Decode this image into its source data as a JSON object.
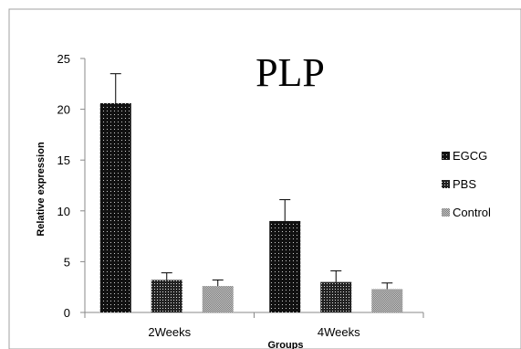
{
  "chart_data": {
    "type": "bar",
    "title": "PLP",
    "xlabel": "Groups",
    "ylabel": "Relative expression",
    "categories": [
      "2Weeks",
      "4Weeks"
    ],
    "ylim": [
      0,
      25
    ],
    "yticks": [
      0,
      5,
      10,
      15,
      20,
      25
    ],
    "series": [
      {
        "name": "EGCG",
        "values": [
          20.6,
          9.0
        ],
        "errors": [
          2.9,
          2.1
        ]
      },
      {
        "name": "PBS",
        "values": [
          3.2,
          3.0
        ],
        "errors": [
          0.7,
          1.1
        ]
      },
      {
        "name": "Control",
        "values": [
          2.6,
          2.3
        ],
        "errors": [
          0.6,
          0.6
        ]
      }
    ],
    "legend_position": "right",
    "grid": false
  }
}
